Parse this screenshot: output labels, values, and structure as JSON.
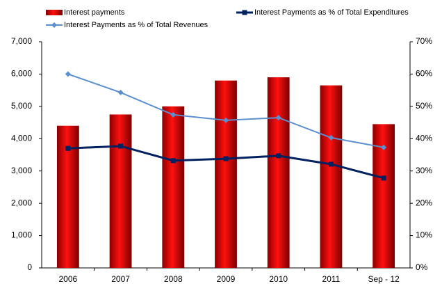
{
  "chart_data": {
    "type": "bar-line",
    "categories": [
      "2006",
      "2007",
      "2008",
      "2009",
      "2010",
      "2011",
      "Sep - 12"
    ],
    "series": [
      {
        "name": "Interest payments",
        "type": "bar",
        "color": "#e00000",
        "values": [
          4400,
          4750,
          5000,
          5800,
          5900,
          5650,
          4450
        ]
      },
      {
        "name": "Interest Payments as % of Total Expenditures",
        "type": "line",
        "axis": "y2",
        "color": "#002060",
        "values": [
          37,
          37.7,
          33.2,
          33.8,
          34.7,
          32.1,
          27.8
        ]
      },
      {
        "name": "Interest Payments as % of Total Revenues",
        "type": "line",
        "axis": "y2",
        "color": "#5b8fd0",
        "values": [
          60,
          54.3,
          47.4,
          45.7,
          46.5,
          40.3,
          37.3
        ]
      }
    ],
    "ylim": [
      0,
      7000
    ],
    "yticks": [
      0,
      {
        "value": 1000,
        "label": "1,000"
      },
      {
        "value": 2000,
        "label": "2,000"
      },
      {
        "value": 3000,
        "label": "3,000"
      },
      {
        "value": 4000,
        "label": "4,000"
      },
      {
        "value": 5000,
        "label": "5,000"
      },
      {
        "value": 6000,
        "label": "6,000"
      },
      {
        "value": 7000,
        "label": "7,000"
      }
    ],
    "y2lim": [
      0,
      70
    ],
    "y2ticks": [
      {
        "value": 0,
        "label": "0%"
      },
      {
        "value": 10,
        "label": "10%"
      },
      {
        "value": 20,
        "label": "20%"
      },
      {
        "value": 30,
        "label": "30%"
      },
      {
        "value": 40,
        "label": "40%"
      },
      {
        "value": 50,
        "label": "50%"
      },
      {
        "value": 60,
        "label": "60%"
      },
      {
        "value": 70,
        "label": "70%"
      }
    ],
    "grid": false
  }
}
